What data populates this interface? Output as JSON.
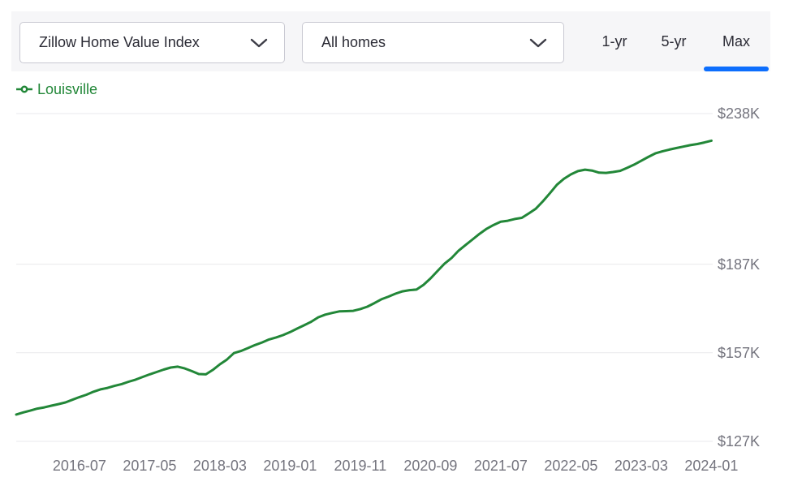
{
  "toolbar": {
    "metric_dropdown": {
      "value": "Zillow Home Value Index"
    },
    "home_type_dropdown": {
      "value": "All homes"
    },
    "range_tabs": [
      {
        "label": "1-yr",
        "selected": false
      },
      {
        "label": "5-yr",
        "selected": false
      },
      {
        "label": "Max",
        "selected": true
      }
    ]
  },
  "legend": {
    "series_label": "Louisville",
    "marker": "line-with-circle",
    "color": "#228738"
  },
  "colors": {
    "series_green": "#228738",
    "active_tab_indicator_blue": "#0d6efd",
    "toolbar_background": "#f6f6f8",
    "grid_line": "#e9e9ec",
    "axis_label_gray": "#74747e",
    "control_text_dark": "#2b2b35",
    "control_border": "#c9c9d2"
  },
  "chart_data": {
    "type": "line",
    "y_unit": "$K",
    "grid": "horizontal",
    "legend_position": "top-left",
    "ylim": [
      122,
      243
    ],
    "x": [
      "2015-10",
      "2015-11",
      "2015-12",
      "2016-01",
      "2016-02",
      "2016-03",
      "2016-04",
      "2016-05",
      "2016-06",
      "2016-07",
      "2016-08",
      "2016-09",
      "2016-10",
      "2016-11",
      "2016-12",
      "2017-01",
      "2017-02",
      "2017-03",
      "2017-04",
      "2017-05",
      "2017-06",
      "2017-07",
      "2017-08",
      "2017-09",
      "2017-10",
      "2017-11",
      "2017-12",
      "2018-01",
      "2018-02",
      "2018-03",
      "2018-04",
      "2018-05",
      "2018-06",
      "2018-07",
      "2018-08",
      "2018-09",
      "2018-10",
      "2018-11",
      "2018-12",
      "2019-01",
      "2019-02",
      "2019-03",
      "2019-04",
      "2019-05",
      "2019-06",
      "2019-07",
      "2019-08",
      "2019-09",
      "2019-10",
      "2019-11",
      "2019-12",
      "2020-01",
      "2020-02",
      "2020-03",
      "2020-04",
      "2020-05",
      "2020-06",
      "2020-07",
      "2020-08",
      "2020-09",
      "2020-10",
      "2020-11",
      "2020-12",
      "2021-01",
      "2021-02",
      "2021-03",
      "2021-04",
      "2021-05",
      "2021-06",
      "2021-07",
      "2021-08",
      "2021-09",
      "2021-10",
      "2021-11",
      "2021-12",
      "2022-01",
      "2022-02",
      "2022-03",
      "2022-04",
      "2022-05",
      "2022-06",
      "2022-07",
      "2022-08",
      "2022-09",
      "2022-10",
      "2022-11",
      "2022-12",
      "2023-01",
      "2023-02",
      "2023-03",
      "2023-04",
      "2023-05",
      "2023-06",
      "2023-07",
      "2023-08",
      "2023-09",
      "2023-10",
      "2023-11",
      "2023-12",
      "2024-01"
    ],
    "series": [
      {
        "name": "Louisville",
        "color": "#228738",
        "values": [
          136.1,
          136.8,
          137.4,
          138.1,
          138.5,
          139.1,
          139.6,
          140.2,
          141.1,
          142.0,
          142.8,
          143.8,
          144.6,
          145.1,
          145.8,
          146.4,
          147.2,
          147.9,
          148.8,
          149.7,
          150.5,
          151.3,
          152.0,
          152.3,
          151.7,
          150.8,
          149.8,
          149.7,
          151.2,
          153.1,
          154.7,
          156.9,
          157.6,
          158.6,
          159.6,
          160.5,
          161.5,
          162.2,
          163.0,
          164.0,
          165.2,
          166.3,
          167.5,
          169.0,
          169.9,
          170.5,
          171.0,
          171.1,
          171.2,
          171.8,
          172.6,
          173.8,
          175.1,
          176.0,
          177.0,
          177.8,
          178.2,
          178.4,
          180.0,
          182.2,
          184.7,
          187.2,
          189.1,
          191.6,
          193.5,
          195.4,
          197.3,
          199.0,
          200.3,
          201.4,
          201.7,
          202.3,
          202.7,
          204.2,
          205.8,
          208.3,
          211.0,
          213.9,
          215.9,
          217.4,
          218.5,
          219.0,
          218.7,
          218.0,
          217.9,
          218.2,
          218.6,
          219.6,
          220.7,
          222.0,
          223.3,
          224.5,
          225.2,
          225.8,
          226.3,
          226.8,
          227.3,
          227.7,
          228.2,
          228.8
        ]
      }
    ],
    "x_ticks": [
      "2016-07",
      "2017-05",
      "2018-03",
      "2019-01",
      "2019-11",
      "2020-09",
      "2021-07",
      "2022-05",
      "2023-03",
      "2024-01"
    ],
    "y_ticks": [
      {
        "label": "$238K",
        "value": 238
      },
      {
        "label": "$187K",
        "value": 187
      },
      {
        "label": "$157K",
        "value": 157
      },
      {
        "label": "$127K",
        "value": 127
      }
    ]
  }
}
